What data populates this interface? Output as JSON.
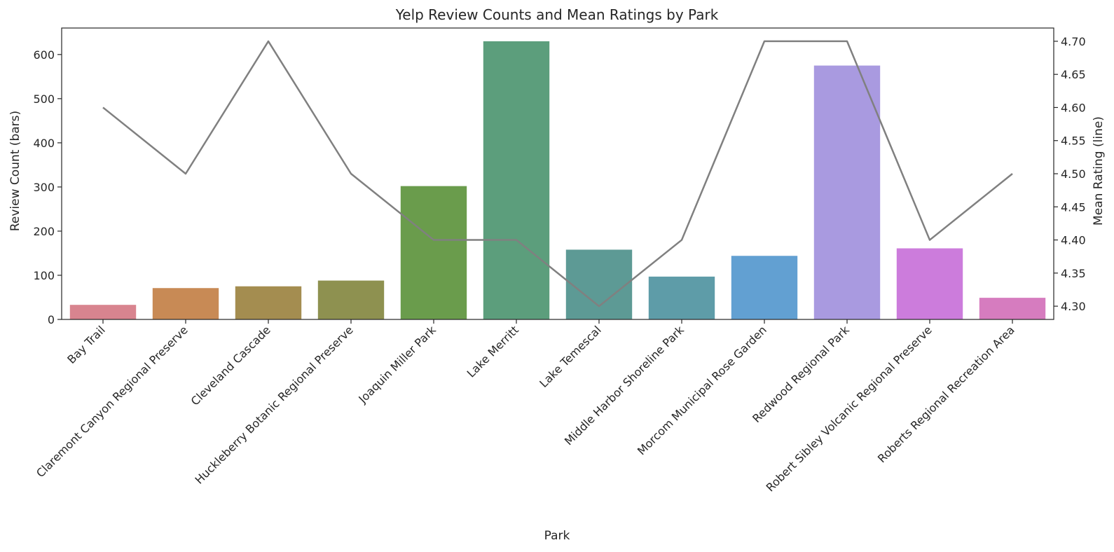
{
  "chart_data": {
    "type": "bar",
    "title": "Yelp Review Counts and Mean Ratings by Park",
    "xlabel": "Park",
    "ylabel": "Review Count (bars)",
    "y2label": "Mean Rating (line)",
    "categories": [
      "Bay Trail",
      "Claremont Canyon Regional Preserve",
      "Cleveland Cascade",
      "Huckleberry Botanic Regional Preserve",
      "Joaquin Miller Park",
      "Lake Merritt",
      "Lake Temescal",
      "Middle Harbor Shoreline Park",
      "Morcom Municipal Rose Garden",
      "Redwood Regional Park",
      "Robert Sibley Volcanic Regional Preserve",
      "Roberts Regional Recreation Area"
    ],
    "series": [
      {
        "type": "bar",
        "values": [
          33,
          71,
          75,
          88,
          302,
          630,
          158,
          97,
          144,
          575,
          161,
          49
        ]
      },
      {
        "type": "line",
        "axis": "right",
        "color": "#808080",
        "values": [
          4.6,
          4.5,
          4.7,
          4.5,
          4.4,
          4.4,
          4.3,
          4.4,
          4.7,
          4.7,
          4.4,
          4.5
        ]
      }
    ],
    "bar_colors": [
      "#d8848f",
      "#c88a55",
      "#a48d50",
      "#8e9150",
      "#6a9c4c",
      "#5c9e7c",
      "#5d9a95",
      "#5e9ca8",
      "#62a0d2",
      "#a99ae0",
      "#cc7cdc",
      "#d67cbf"
    ],
    "ylim": [
      0,
      660
    ],
    "yticks": [
      0,
      100,
      200,
      300,
      400,
      500,
      600
    ],
    "y2lim": [
      4.28,
      4.72
    ],
    "y2ticks": [
      "4.30",
      "4.35",
      "4.40",
      "4.45",
      "4.50",
      "4.55",
      "4.60",
      "4.65",
      "4.70"
    ],
    "grid": false
  }
}
